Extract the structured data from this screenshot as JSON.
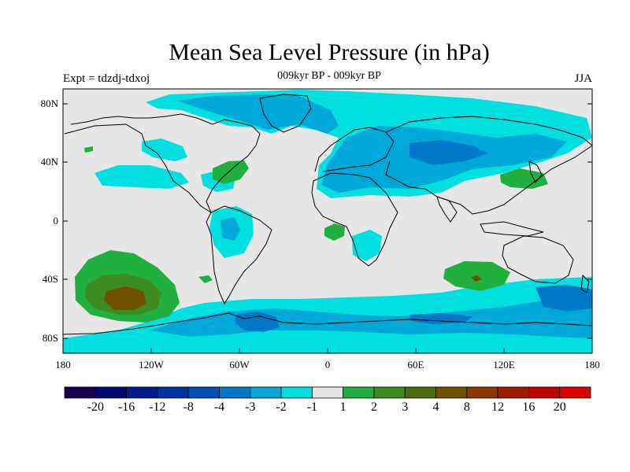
{
  "title": "Mean Sea Level Pressure (in hPa)",
  "subtitle": "009kyr BP - 009kyr BP",
  "left_label": "Expt = tdzdj-tdxoj",
  "right_label": "JJA",
  "colors": {
    "background_neutral": "#e6e6e6",
    "negative_light": "#00e0e0",
    "negative_mid": "#00a8d8",
    "negative_strong": "#0078c8",
    "positive_light": "#21b040",
    "positive_mid": "#3d8c20",
    "positive_strong": "#6e6a20"
  },
  "map": {
    "projection": "cylindrical-equidistant",
    "lat_range": [
      -90,
      90
    ],
    "lon_range": [
      -180,
      180
    ],
    "y_tick_labels": [
      "80N",
      "40N",
      "0",
      "40S",
      "80S"
    ],
    "x_tick_labels": [
      "180",
      "120W",
      "60W",
      "0",
      "60E",
      "120E",
      "180"
    ]
  },
  "colorbar": {
    "labels": [
      "-20",
      "-16",
      "-12",
      "-8",
      "-4",
      "-3",
      "-2",
      "-1",
      "1",
      "2",
      "3",
      "4",
      "8",
      "12",
      "16",
      "20"
    ],
    "colors": [
      "#180050",
      "#000a6e",
      "#001c8c",
      "#0032a0",
      "#0050b4",
      "#0078c8",
      "#00a8d8",
      "#00e0e0",
      "#e6e6e6",
      "#21b040",
      "#3d8c20",
      "#4e6a10",
      "#6e5200",
      "#8a3800",
      "#a21a00",
      "#c00000",
      "#dc0000"
    ]
  }
}
